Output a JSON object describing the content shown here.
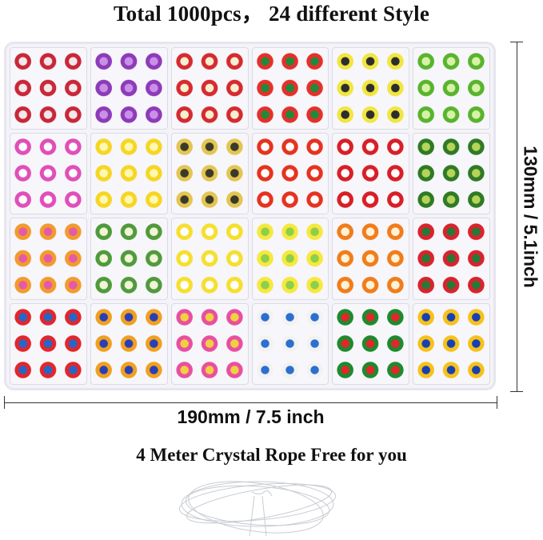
{
  "title": "Total 1000pcs，  24 different Style",
  "width_label": "190mm / 7.5 inch",
  "height_label": "130mm / 5.1inch",
  "subtitle": "4 Meter Crystal Rope Free for you",
  "compartments": [
    [
      "#c8273a",
      "#f5e7ea"
    ],
    [
      "#8d3bb8",
      "#c990e8"
    ],
    [
      "#d62a30",
      "#f4f0d0"
    ],
    [
      "#e5302a",
      "#1e8a3c"
    ],
    [
      "#f0e640",
      "#2d2d2d"
    ],
    [
      "#59b42d",
      "#d7f2a8"
    ],
    [
      "#e04fb8",
      "#ffffff"
    ],
    [
      "#f6d623",
      "#fff8b0"
    ],
    [
      "#e3c552",
      "#3a3a2a"
    ],
    [
      "#e5331f",
      "#ffffff"
    ],
    [
      "#d81f27",
      "#ffffff"
    ],
    [
      "#2f7a24",
      "#b6d45a"
    ],
    [
      "#f29b2c",
      "#e35aa9"
    ],
    [
      "#4f9b3b",
      "#f3f3d8"
    ],
    [
      "#f6df2e",
      "#ffffff"
    ],
    [
      "#f7e83d",
      "#8ccf4a"
    ],
    [
      "#f07d1b",
      "#fff2d8"
    ],
    [
      "#d9232d",
      "#247a36"
    ],
    [
      "#e2262c",
      "#2268c9"
    ],
    [
      "#f0a020",
      "#2a3fb5"
    ],
    [
      "#e84fa0",
      "#f0d040"
    ],
    [
      "#f2f2f2",
      "#2b6fd0"
    ],
    [
      "#1e8a2e",
      "#e2262c"
    ],
    [
      "#f6c21a",
      "#1840b3"
    ]
  ]
}
